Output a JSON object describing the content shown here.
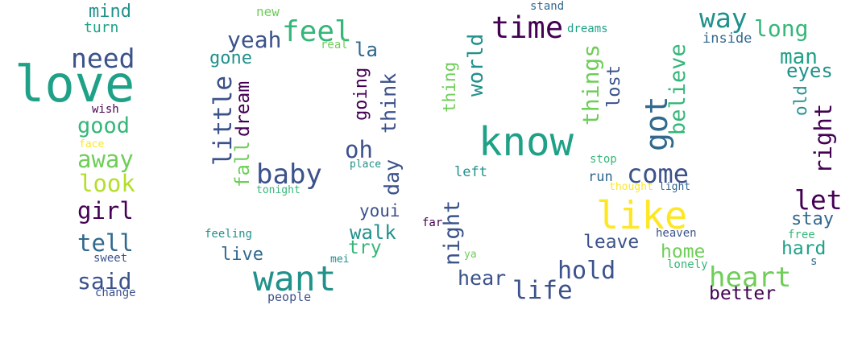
{
  "palette": {
    "dark_purple": "#440154",
    "indigo": "#3b528b",
    "blue": "#31688e",
    "teal": "#21918c",
    "green_teal": "#1fa187",
    "green": "#35b779",
    "light_green": "#6ece58",
    "lime": "#b5de2b",
    "yellow": "#fde725"
  },
  "words": [
    "love",
    "need",
    "mind",
    "turn",
    "wish",
    "good",
    "face",
    "away",
    "look",
    "girl",
    "tell",
    "sweet",
    "said",
    "change",
    "new",
    "feel",
    "real",
    "yeah",
    "la",
    "gone",
    "little",
    "dream",
    "fall",
    "tonight",
    "baby",
    "going",
    "think",
    "oh",
    "place",
    "day",
    "youi",
    "walk",
    "try",
    "feeling",
    "live",
    "mei",
    "want",
    "people",
    "stand",
    "dreams",
    "time",
    "thing",
    "world",
    "know",
    "left",
    "night",
    "far",
    "ya",
    "hear",
    "life",
    "things",
    "lost",
    "got",
    "believe",
    "stop",
    "run",
    "thought",
    "light",
    "like",
    "hold",
    "leave",
    "come",
    "way",
    "long",
    "inside",
    "man",
    "eyes",
    "old",
    "right",
    "let",
    "stay",
    "heaven",
    "free",
    "home",
    "lonely",
    "hard",
    "s",
    "heart",
    "better"
  ]
}
